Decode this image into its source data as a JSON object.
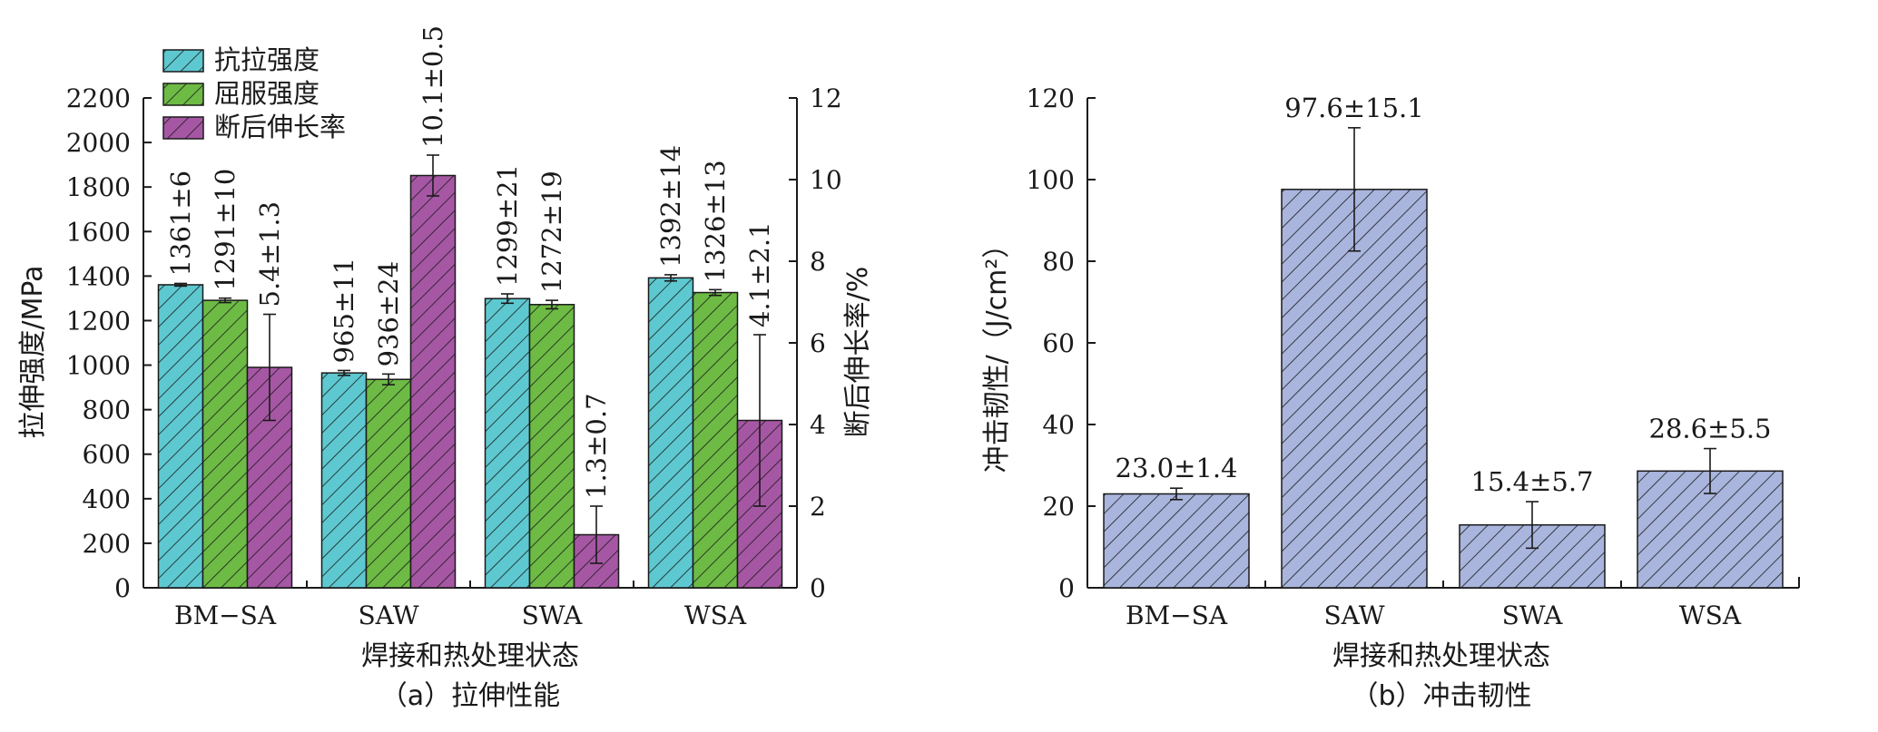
{
  "chart_data": [
    {
      "id": "a",
      "type": "bar",
      "caption": "（a）拉伸性能",
      "xlabel": "焊接和热处理状态",
      "ylabel": "拉伸强度/MPa",
      "ylabel_right": "断后伸长率/%",
      "categories": [
        "BM−SA",
        "SAW",
        "SWA",
        "WSA"
      ],
      "ylim": [
        0,
        2200
      ],
      "yticks": [
        0,
        200,
        400,
        600,
        800,
        1000,
        1200,
        1400,
        1600,
        1800,
        2000,
        2200
      ],
      "ylim_right": [
        0,
        12
      ],
      "yticks_right": [
        0,
        2,
        4,
        6,
        8,
        10,
        12
      ],
      "legend_position": "top-left",
      "series": [
        {
          "name": "抗拉强度",
          "axis": "left",
          "color": "#5ec8d0",
          "values": [
            1361,
            965,
            1299,
            1392
          ],
          "errors": [
            6,
            11,
            21,
            14
          ],
          "labels": [
            "1361±6",
            "965±11",
            "1299±21",
            "1392±14"
          ]
        },
        {
          "name": "屈服强度",
          "axis": "left",
          "color": "#6dbb45",
          "values": [
            1291,
            936,
            1272,
            1326
          ],
          "errors": [
            10,
            24,
            19,
            13
          ],
          "labels": [
            "1291±10",
            "936±24",
            "1272±19",
            "1326±13"
          ]
        },
        {
          "name": "断后伸长率",
          "axis": "right",
          "color": "#a657a4",
          "values": [
            5.4,
            10.1,
            1.3,
            4.1
          ],
          "errors": [
            1.3,
            0.5,
            0.7,
            2.1
          ],
          "labels": [
            "5.4±1.3",
            "10.1±0.5",
            "1.3±0.7",
            "4.1±2.1"
          ]
        }
      ]
    },
    {
      "id": "b",
      "type": "bar",
      "caption": "（b）冲击韧性",
      "xlabel": "焊接和热处理状态",
      "ylabel": "冲击韧性/（J/cm²）",
      "categories": [
        "BM−SA",
        "SAW",
        "SWA",
        "WSA"
      ],
      "ylim": [
        0,
        120
      ],
      "yticks": [
        0,
        20,
        40,
        60,
        80,
        100,
        120
      ],
      "series": [
        {
          "name": "",
          "color": "#a9b5dd",
          "values": [
            23.0,
            97.6,
            15.4,
            28.6
          ],
          "errors": [
            1.4,
            15.1,
            5.7,
            5.5
          ],
          "labels": [
            "23.0±1.4",
            "97.6±15.1",
            "15.4±5.7",
            "28.6±5.5"
          ]
        }
      ]
    }
  ]
}
